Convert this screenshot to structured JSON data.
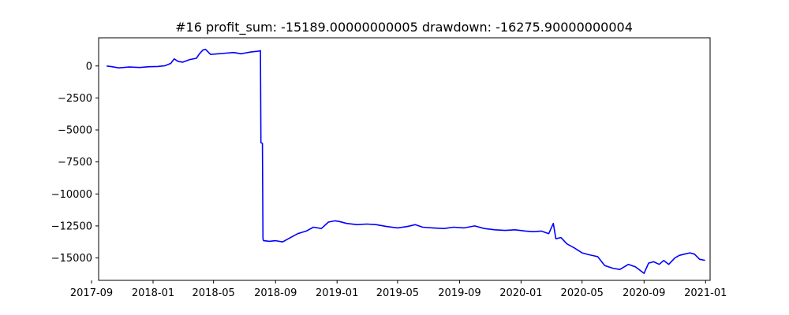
{
  "chart_data": {
    "type": "line",
    "title": "#16   profit_sum: -15189.00000000005 drawdown: -16275.90000000004",
    "xlabel": "",
    "ylabel": "",
    "x_scale": "date",
    "xlim": [
      "2017-09-15",
      "2021-01-10"
    ],
    "ylim": [
      -16750,
      2200
    ],
    "grid": false,
    "line_color": "#0000ff",
    "x_ticks": [
      "2017-09-01",
      "2018-01-01",
      "2018-05-01",
      "2018-09-01",
      "2019-01-01",
      "2019-05-01",
      "2019-09-01",
      "2020-01-01",
      "2020-05-01",
      "2020-09-01",
      "2021-01-01"
    ],
    "x_tick_labels": [
      "2017-09",
      "2018-01",
      "2018-05",
      "2018-09",
      "2019-01",
      "2019-05",
      "2019-09",
      "2020-01",
      "2020-05",
      "2020-09",
      "2021-01"
    ],
    "y_ticks": [
      0,
      -2500,
      -5000,
      -7500,
      -10000,
      -12500,
      -15000
    ],
    "y_tick_labels": [
      "0",
      "−2500",
      "−5000",
      "−7500",
      "−10000",
      "−12500",
      "−15000"
    ],
    "series": [
      {
        "x": [
          "2017-10-01",
          "2017-10-10",
          "2017-10-25",
          "2017-11-15",
          "2017-12-05",
          "2017-12-25",
          "2018-01-10",
          "2018-01-25",
          "2018-02-05",
          "2018-02-12",
          "2018-02-20",
          "2018-03-01",
          "2018-03-15",
          "2018-03-28",
          "2018-04-03",
          "2018-04-10",
          "2018-04-15",
          "2018-04-25",
          "2018-05-10",
          "2018-05-25",
          "2018-06-10",
          "2018-06-25",
          "2018-07-01",
          "2018-07-15",
          "2018-07-28",
          "2018-08-02",
          "2018-08-03",
          "2018-08-06",
          "2018-08-07",
          "2018-08-08",
          "2018-08-20",
          "2018-09-01",
          "2018-09-15",
          "2018-10-01",
          "2018-10-15",
          "2018-11-01",
          "2018-11-15",
          "2018-12-01",
          "2018-12-15",
          "2018-12-28",
          "2019-01-05",
          "2019-01-20",
          "2019-02-10",
          "2019-03-01",
          "2019-03-20",
          "2019-04-10",
          "2019-05-01",
          "2019-05-20",
          "2019-06-05",
          "2019-06-20",
          "2019-07-10",
          "2019-08-01",
          "2019-08-20",
          "2019-09-10",
          "2019-10-01",
          "2019-10-20",
          "2019-11-10",
          "2019-12-01",
          "2019-12-20",
          "2020-01-10",
          "2020-01-25",
          "2020-02-10",
          "2020-02-25",
          "2020-03-05",
          "2020-03-10",
          "2020-03-20",
          "2020-04-01",
          "2020-04-15",
          "2020-05-01",
          "2020-05-15",
          "2020-06-01",
          "2020-06-15",
          "2020-07-01",
          "2020-07-15",
          "2020-08-01",
          "2020-08-15",
          "2020-09-01",
          "2020-09-10",
          "2020-09-20",
          "2020-10-01",
          "2020-10-10",
          "2020-10-20",
          "2020-11-01",
          "2020-11-10",
          "2020-11-20",
          "2020-12-01",
          "2020-12-10",
          "2020-12-20",
          "2020-12-31"
        ],
        "y": [
          0,
          -50,
          -150,
          -80,
          -120,
          -60,
          -40,
          20,
          200,
          550,
          350,
          300,
          500,
          600,
          950,
          1250,
          1300,
          900,
          950,
          1000,
          1050,
          950,
          1000,
          1100,
          1150,
          1200,
          -6000,
          -6050,
          -13500,
          -13650,
          -13700,
          -13650,
          -13750,
          -13400,
          -13100,
          -12900,
          -12600,
          -12700,
          -12200,
          -12100,
          -12150,
          -12300,
          -12400,
          -12350,
          -12400,
          -12550,
          -12650,
          -12550,
          -12400,
          -12600,
          -12650,
          -12700,
          -12600,
          -12650,
          -12500,
          -12700,
          -12800,
          -12850,
          -12800,
          -12900,
          -12950,
          -12900,
          -13100,
          -12300,
          -13500,
          -13400,
          -13900,
          -14200,
          -14600,
          -14750,
          -14900,
          -15600,
          -15800,
          -15900,
          -15500,
          -15700,
          -16200,
          -15400,
          -15300,
          -15500,
          -15200,
          -15500,
          -15000,
          -14800,
          -14700,
          -14600,
          -14700,
          -15100,
          -15189
        ]
      }
    ]
  }
}
